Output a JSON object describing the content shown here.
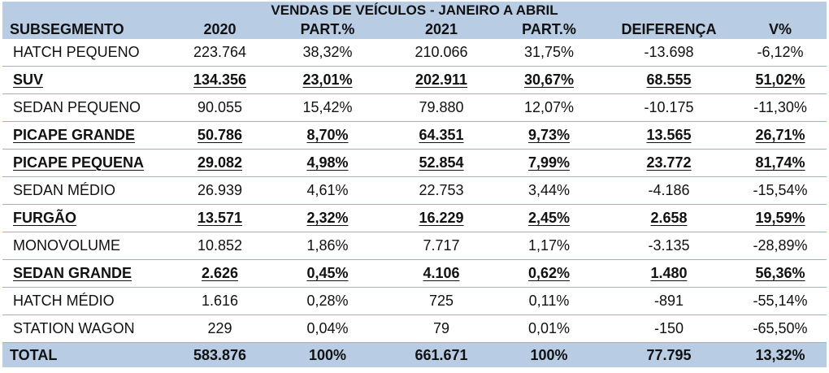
{
  "chart_data": {
    "type": "table",
    "title": "VENDAS DE VEÍCULOS - JANEIRO A ABRIL",
    "columns": [
      "SUBSEGMENTO",
      "2020",
      "PART.%",
      "2021",
      "PART.%",
      "DEIFERENÇA",
      "V%"
    ],
    "rows": [
      {
        "cells": [
          "HATCH PEQUENO",
          "223.764",
          "38,32%",
          "210.066",
          "31,75%",
          "-13.698",
          "-6,12%"
        ],
        "highlight": false
      },
      {
        "cells": [
          "SUV",
          "134.356",
          "23,01%",
          "202.911",
          "30,67%",
          "68.555",
          "51,02%"
        ],
        "highlight": true
      },
      {
        "cells": [
          "SEDAN PEQUENO",
          "90.055",
          "15,42%",
          "79.880",
          "12,07%",
          "-10.175",
          "-11,30%"
        ],
        "highlight": false
      },
      {
        "cells": [
          "PICAPE GRANDE",
          "50.786",
          "8,70%",
          "64.351",
          "9,73%",
          "13.565",
          "26,71%"
        ],
        "highlight": true
      },
      {
        "cells": [
          "PICAPE PEQUENA",
          "29.082",
          "4,98%",
          "52.854",
          "7,99%",
          "23.772",
          "81,74%"
        ],
        "highlight": true
      },
      {
        "cells": [
          "SEDAN MÉDIO",
          "26.939",
          "4,61%",
          "22.753",
          "3,44%",
          "-4.186",
          "-15,54%"
        ],
        "highlight": false
      },
      {
        "cells": [
          "FURGÃO",
          "13.571",
          "2,32%",
          "16.229",
          "2,45%",
          "2.658",
          "19,59%"
        ],
        "highlight": true
      },
      {
        "cells": [
          "MONOVOLUME",
          "10.852",
          "1,86%",
          "7.717",
          "1,17%",
          "-3.135",
          "-28,89%"
        ],
        "highlight": false
      },
      {
        "cells": [
          "SEDAN GRANDE",
          "2.626",
          "0,45%",
          "4.106",
          "0,62%",
          "1.480",
          "56,36%"
        ],
        "highlight": true
      },
      {
        "cells": [
          "HATCH MÉDIO",
          "1.616",
          "0,28%",
          "725",
          "0,11%",
          "-891",
          "-55,14%"
        ],
        "highlight": false
      },
      {
        "cells": [
          "STATION WAGON",
          "229",
          "0,04%",
          "79",
          "0,01%",
          "-150",
          "-65,50%"
        ],
        "highlight": false
      }
    ],
    "total": [
      "TOTAL",
      "583.876",
      "100%",
      "661.671",
      "100%",
      "77.795",
      "13,32%"
    ]
  },
  "colors": {
    "header_background": "#b8cce4",
    "row_divider": "#8db3e2",
    "text": "#111111"
  }
}
